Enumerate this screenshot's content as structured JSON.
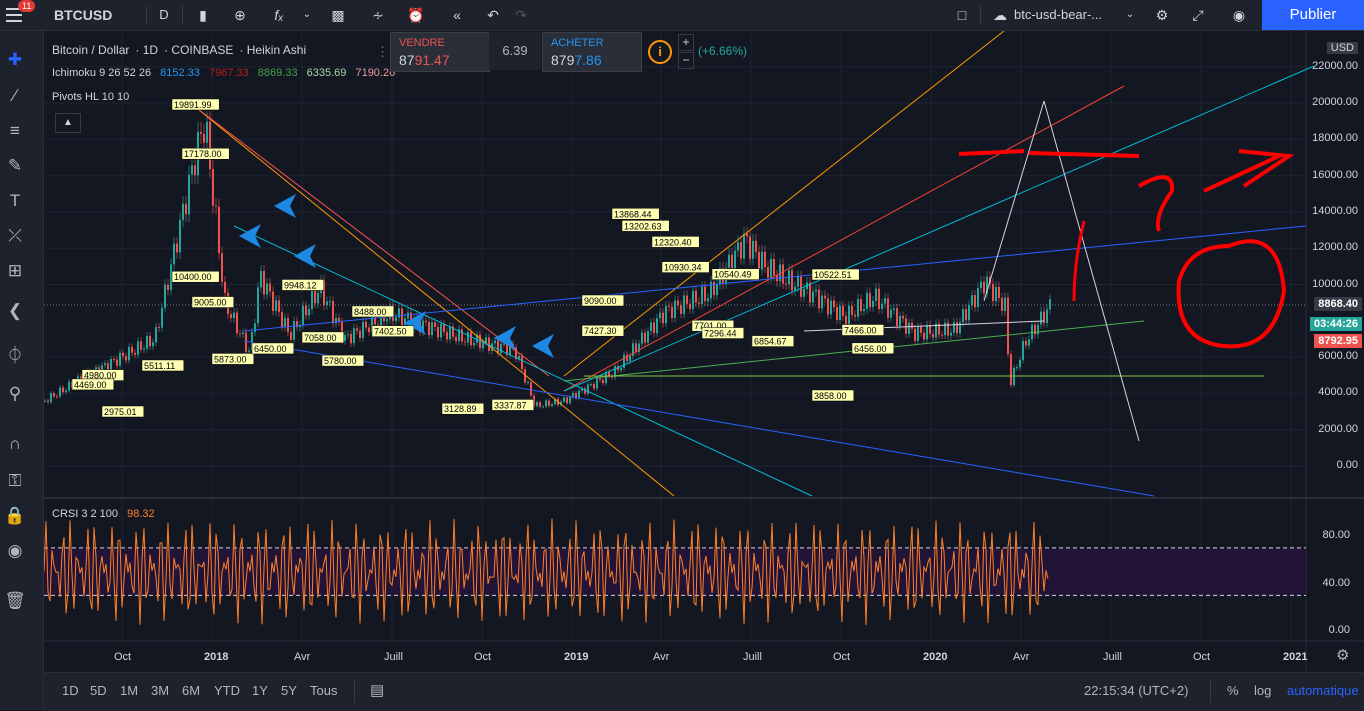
{
  "toolbar": {
    "symbol": "BTCUSD",
    "interval": "D",
    "notification_count": "11",
    "layout_name": "btc-usd-bear-...",
    "publish_label": "Publier"
  },
  "legend": {
    "title_parts": [
      "Bitcoin / Dollar",
      "1D",
      "COINBASE",
      "Heikin Ashi"
    ],
    "ichimoku_label": "Ichimoku 9 26 52 26",
    "ichimoku_values": [
      "8152.33",
      "7967.33",
      "8869.33",
      "6335.69",
      "7190.26"
    ],
    "pivots_label": "Pivots HL 10 10",
    "change": "(+6.66%)"
  },
  "trade": {
    "sell_label": "VENDRE",
    "sell_price_prefix": "87",
    "sell_price_suffix": "91.47",
    "spread": "6.39",
    "buy_label": "ACHETER",
    "buy_price_prefix": "879",
    "buy_price_suffix": "7.86"
  },
  "price_axis": {
    "currency": "USD",
    "ticks": [
      "22000.00",
      "20000.00",
      "18000.00",
      "16000.00",
      "14000.00",
      "12000.00",
      "10000.00",
      "6000.00",
      "4000.00",
      "2000.00",
      "0.00"
    ],
    "tick_values": [
      22000,
      20000,
      18000,
      16000,
      14000,
      12000,
      10000,
      6000,
      4000,
      2000,
      0
    ],
    "tags": [
      {
        "text": "8868.40",
        "color": "#363a45"
      },
      {
        "text": "03:44:26",
        "color": "#26a69a"
      },
      {
        "text": "8792.95",
        "color": "#ef5350"
      }
    ]
  },
  "crsi": {
    "label": "CRSI 3 2 100",
    "value": "98.32",
    "ticks": [
      "80.00",
      "40.00",
      "0.00"
    ],
    "tick_values": [
      80,
      40,
      0
    ]
  },
  "time_axis": {
    "labels": [
      "Oct",
      "2018",
      "Avr",
      "Juill",
      "Oct",
      "2019",
      "Avr",
      "Juill",
      "Oct",
      "2020",
      "Avr",
      "Juill",
      "Oct",
      "2021"
    ]
  },
  "pivot_labels": [
    {
      "text": "19891.99",
      "price": 19891.99,
      "date": 0.12
    },
    {
      "text": "17178.00",
      "price": 17178,
      "date": 0.13
    },
    {
      "text": "10400.00",
      "price": 10400,
      "date": 0.12
    },
    {
      "text": "9005.00",
      "price": 9005,
      "date": 0.14
    },
    {
      "text": "5873.00",
      "price": 5873,
      "date": 0.16
    },
    {
      "text": "6450.00",
      "price": 6450,
      "date": 0.2
    },
    {
      "text": "9948.12",
      "price": 9948.12,
      "date": 0.23
    },
    {
      "text": "8488.00",
      "price": 8488,
      "date": 0.3
    },
    {
      "text": "7402.50",
      "price": 7402.5,
      "date": 0.32
    },
    {
      "text": "7058.00",
      "price": 7058,
      "date": 0.25
    },
    {
      "text": "5780.00",
      "price": 5780,
      "date": 0.27
    },
    {
      "text": "3128.89",
      "price": 3128.89,
      "date": 0.39
    },
    {
      "text": "3337.87",
      "price": 3337.87,
      "date": 0.44
    },
    {
      "text": "4980.00",
      "price": 4980,
      "date": 0.03
    },
    {
      "text": "4469.00",
      "price": 4469,
      "date": 0.02
    },
    {
      "text": "2975.01",
      "price": 2975.01,
      "date": 0.05
    },
    {
      "text": "5511.11",
      "price": 5511.11,
      "date": 0.09
    },
    {
      "text": "13868.44",
      "price": 13868.44,
      "date": 0.56
    },
    {
      "text": "13202.63",
      "price": 13202.63,
      "date": 0.57
    },
    {
      "text": "12320.40",
      "price": 12320.4,
      "date": 0.6
    },
    {
      "text": "9090.00",
      "price": 9090,
      "date": 0.53
    },
    {
      "text": "7427.30",
      "price": 7427.3,
      "date": 0.53
    },
    {
      "text": "10930.34",
      "price": 10930.34,
      "date": 0.61
    },
    {
      "text": "10540.49",
      "price": 10540.49,
      "date": 0.66
    },
    {
      "text": "7701.00",
      "price": 7701,
      "date": 0.64
    },
    {
      "text": "7296.44",
      "price": 7296.44,
      "date": 0.65
    },
    {
      "text": "6854.67",
      "price": 6854.67,
      "date": 0.7
    },
    {
      "text": "10522.51",
      "price": 10522.51,
      "date": 0.76
    },
    {
      "text": "3858.00",
      "price": 3858,
      "date": 0.76
    },
    {
      "text": "7466.00",
      "price": 7466,
      "date": 0.79
    },
    {
      "text": "6456.00",
      "price": 6456,
      "date": 0.8
    }
  ],
  "timeframes": [
    "1D",
    "5D",
    "1M",
    "3M",
    "6M",
    "YTD",
    "1Y",
    "5Y",
    "Tous"
  ],
  "status": {
    "time": "22:15:34 (UTC+2)",
    "percent": "%",
    "log": "log",
    "auto": "automatique"
  },
  "colors": {
    "background": "#131722",
    "accent": "#2962ff",
    "up": "#26a69a",
    "down": "#ef5350",
    "crsi": "#ff7f27",
    "annotation": "#ff0000"
  }
}
